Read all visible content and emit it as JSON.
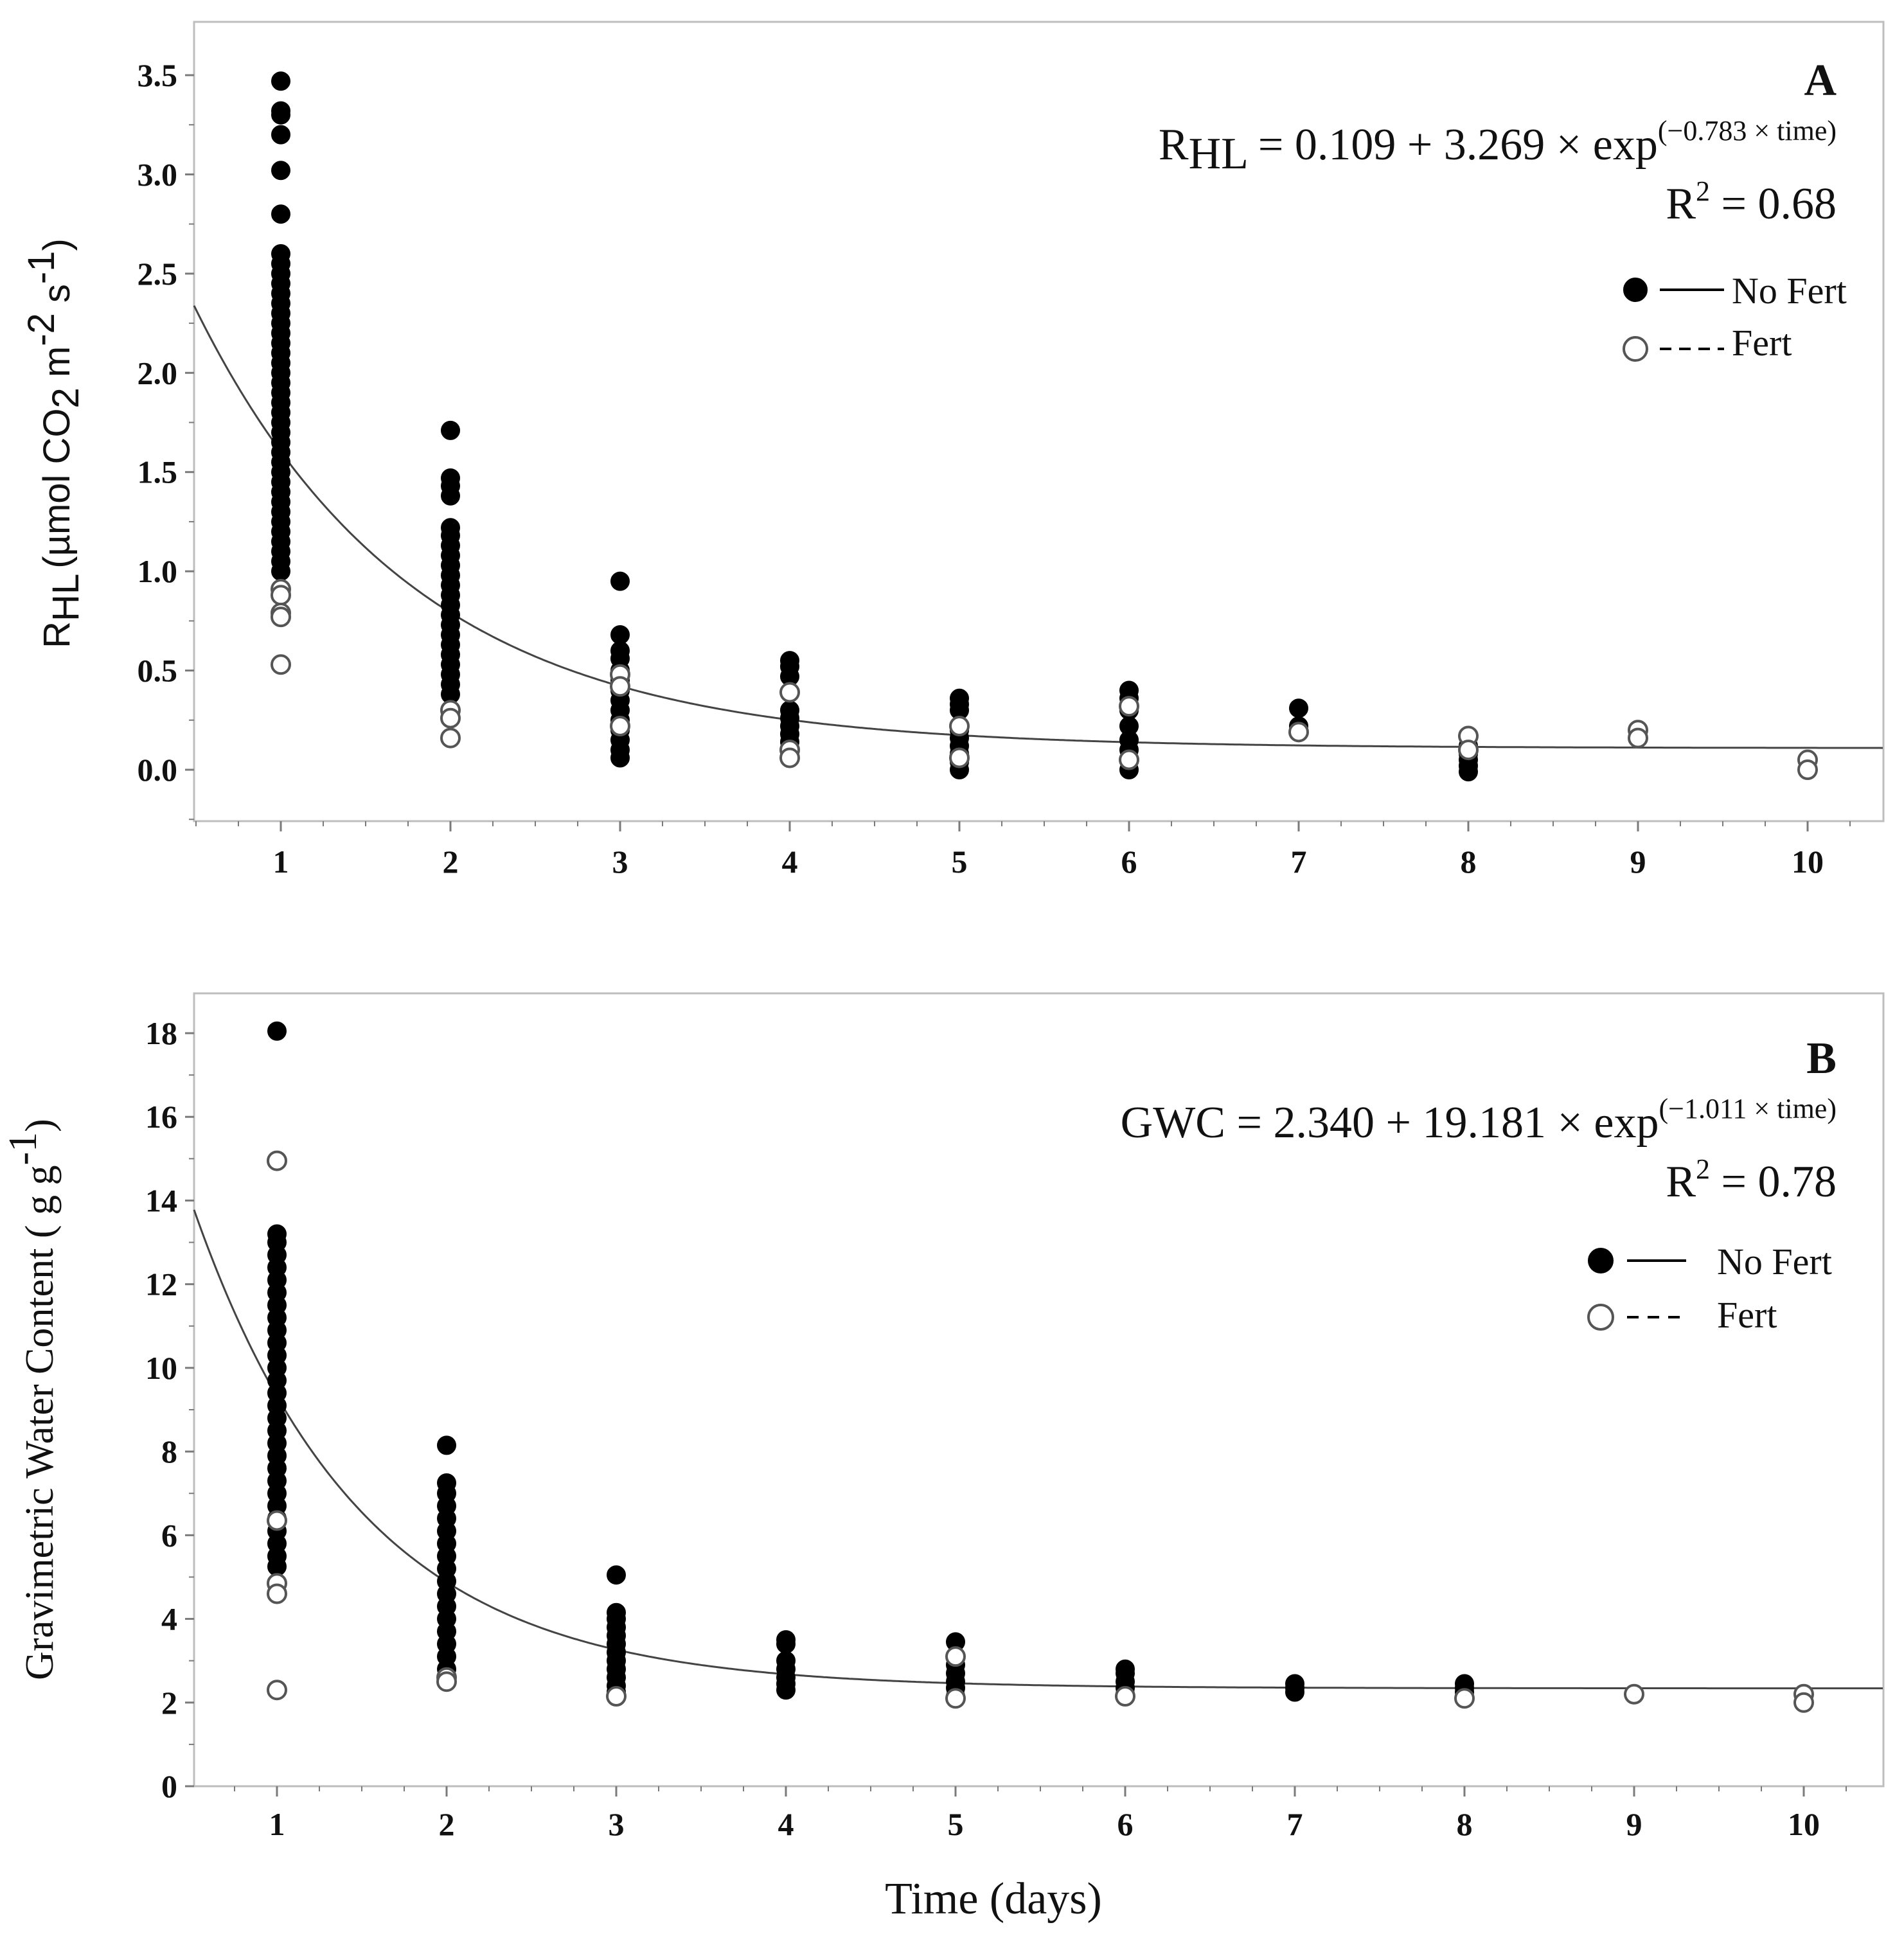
{
  "chart_data": [
    {
      "type": "scatter",
      "panel_letter": "A",
      "ylabel_main": "R",
      "ylabel_sub": "HL",
      "ylabel_rest": "(µmol CO",
      "ylabel_co2_sub": "2",
      "ylabel_m": " m",
      "ylabel_m_sup": "-2",
      "ylabel_s": " s",
      "ylabel_s_sup": "-1",
      "ylabel_close": ")",
      "ylim": [
        -0.25,
        3.6
      ],
      "yticks": [
        0.0,
        0.5,
        1.0,
        1.5,
        2.0,
        2.5,
        3.0,
        3.5
      ],
      "ytick_labels": [
        "0.0",
        "0.5",
        "1.0",
        "1.5",
        "2.0",
        "2.5",
        "3.0",
        "3.5"
      ],
      "xlim": [
        0.5,
        10.5
      ],
      "equation_lhs": "R",
      "equation_lhs_sub": "HL",
      "equation_body": " = 0.109 + 3.269 × exp",
      "equation_exp": "(−0.783 × time)",
      "r2_label": "R",
      "r2_sup": "2",
      "r2_value": " = 0.68",
      "fit": {
        "a": 0.109,
        "b": 3.269,
        "k": -0.783
      },
      "legend": [
        {
          "marker": "filled",
          "line": "solid",
          "label": "No Fert"
        },
        {
          "marker": "open",
          "line": "dashed",
          "label": "Fert"
        }
      ],
      "series": [
        {
          "name": "No Fert",
          "points": [
            [
              1,
              3.47
            ],
            [
              1,
              3.32
            ],
            [
              1,
              3.3
            ],
            [
              1,
              3.2
            ],
            [
              1,
              3.02
            ],
            [
              1,
              2.8
            ],
            [
              1,
              2.6
            ],
            [
              1,
              2.55
            ],
            [
              1,
              2.5
            ],
            [
              1,
              2.45
            ],
            [
              1,
              2.4
            ],
            [
              1,
              2.35
            ],
            [
              1,
              2.3
            ],
            [
              1,
              2.25
            ],
            [
              1,
              2.2
            ],
            [
              1,
              2.15
            ],
            [
              1,
              2.1
            ],
            [
              1,
              2.05
            ],
            [
              1,
              2.0
            ],
            [
              1,
              1.95
            ],
            [
              1,
              1.9
            ],
            [
              1,
              1.85
            ],
            [
              1,
              1.8
            ],
            [
              1,
              1.75
            ],
            [
              1,
              1.7
            ],
            [
              1,
              1.65
            ],
            [
              1,
              1.6
            ],
            [
              1,
              1.55
            ],
            [
              1,
              1.5
            ],
            [
              1,
              1.45
            ],
            [
              1,
              1.4
            ],
            [
              1,
              1.35
            ],
            [
              1,
              1.3
            ],
            [
              1,
              1.25
            ],
            [
              1,
              1.2
            ],
            [
              1,
              1.15
            ],
            [
              1,
              1.1
            ],
            [
              1,
              1.05
            ],
            [
              1,
              1.0
            ],
            [
              2,
              1.71
            ],
            [
              2,
              1.47
            ],
            [
              2,
              1.43
            ],
            [
              2,
              1.38
            ],
            [
              2,
              1.22
            ],
            [
              2,
              1.18
            ],
            [
              2,
              1.13
            ],
            [
              2,
              1.08
            ],
            [
              2,
              1.03
            ],
            [
              2,
              0.98
            ],
            [
              2,
              0.93
            ],
            [
              2,
              0.88
            ],
            [
              2,
              0.83
            ],
            [
              2,
              0.78
            ],
            [
              2,
              0.73
            ],
            [
              2,
              0.68
            ],
            [
              2,
              0.63
            ],
            [
              2,
              0.58
            ],
            [
              2,
              0.53
            ],
            [
              2,
              0.48
            ],
            [
              2,
              0.43
            ],
            [
              2,
              0.38
            ],
            [
              3,
              0.95
            ],
            [
              3,
              0.68
            ],
            [
              3,
              0.6
            ],
            [
              3,
              0.56
            ],
            [
              3,
              0.5
            ],
            [
              3,
              0.45
            ],
            [
              3,
              0.4
            ],
            [
              3,
              0.35
            ],
            [
              3,
              0.3
            ],
            [
              3,
              0.25
            ],
            [
              3,
              0.2
            ],
            [
              3,
              0.15
            ],
            [
              3,
              0.1
            ],
            [
              3,
              0.06
            ],
            [
              4,
              0.55
            ],
            [
              4,
              0.52
            ],
            [
              4,
              0.47
            ],
            [
              4,
              0.3
            ],
            [
              4,
              0.26
            ],
            [
              4,
              0.22
            ],
            [
              4,
              0.18
            ],
            [
              4,
              0.14
            ],
            [
              4,
              0.1
            ],
            [
              5,
              0.36
            ],
            [
              5,
              0.33
            ],
            [
              5,
              0.3
            ],
            [
              5,
              0.2
            ],
            [
              5,
              0.16
            ],
            [
              5,
              0.12
            ],
            [
              5,
              0.08
            ],
            [
              5,
              0.04
            ],
            [
              5,
              0.0
            ],
            [
              6,
              0.4
            ],
            [
              6,
              0.36
            ],
            [
              6,
              0.3
            ],
            [
              6,
              0.22
            ],
            [
              6,
              0.15
            ],
            [
              6,
              0.1
            ],
            [
              6,
              0.0
            ],
            [
              7,
              0.31
            ],
            [
              7,
              0.22
            ],
            [
              7,
              0.2
            ],
            [
              8,
              0.12
            ],
            [
              8,
              0.08
            ],
            [
              8,
              0.05
            ],
            [
              8,
              0.02
            ],
            [
              8,
              -0.01
            ]
          ]
        },
        {
          "name": "Fert",
          "points": [
            [
              1,
              0.91
            ],
            [
              1,
              0.88
            ],
            [
              1,
              0.79
            ],
            [
              1,
              0.77
            ],
            [
              1,
              0.53
            ],
            [
              2,
              0.3
            ],
            [
              2,
              0.26
            ],
            [
              2,
              0.16
            ],
            [
              3,
              0.48
            ],
            [
              3,
              0.42
            ],
            [
              3,
              0.22
            ],
            [
              4,
              0.39
            ],
            [
              4,
              0.1
            ],
            [
              4,
              0.06
            ],
            [
              5,
              0.22
            ],
            [
              5,
              0.06
            ],
            [
              6,
              0.32
            ],
            [
              6,
              0.05
            ],
            [
              7,
              0.19
            ],
            [
              8,
              0.17
            ],
            [
              8,
              0.1
            ],
            [
              9,
              0.2
            ],
            [
              9,
              0.16
            ],
            [
              10,
              0.05
            ],
            [
              10,
              0.0
            ]
          ]
        }
      ]
    },
    {
      "type": "scatter",
      "panel_letter": "B",
      "ylabel": "Gravimetric  Water Content ( g g",
      "ylabel_sup": "-1",
      "ylabel_close": ")",
      "ylim": [
        0,
        19
      ],
      "yticks": [
        0,
        2,
        4,
        6,
        8,
        10,
        12,
        14,
        16,
        18
      ],
      "ytick_labels": [
        "0",
        "2",
        "4",
        "6",
        "8",
        "10",
        "12",
        "14",
        "16",
        "18"
      ],
      "xlim": [
        0.5,
        10.5
      ],
      "xticks": [
        1,
        2,
        3,
        4,
        5,
        6,
        7,
        8,
        9,
        10
      ],
      "xtick_labels": [
        "1",
        "2",
        "3",
        "4",
        "5",
        "6",
        "7",
        "8",
        "9",
        "10"
      ],
      "xlabel": "Time  (days)",
      "equation_body": "GWC = 2.340 + 19.181 × exp",
      "equation_exp": "(−1.011 × time)",
      "r2_label": "R",
      "r2_sup": "2",
      "r2_value": " = 0.78",
      "fit": {
        "a": 2.34,
        "b": 19.181,
        "k": -1.011
      },
      "legend": [
        {
          "marker": "filled",
          "line": "solid",
          "label": "No Fert"
        },
        {
          "marker": "open",
          "line": "dashed",
          "label": "Fert"
        }
      ],
      "series": [
        {
          "name": "No Fert",
          "points": [
            [
              1,
              18.05
            ],
            [
              1,
              13.2
            ],
            [
              1,
              13.0
            ],
            [
              1,
              12.7
            ],
            [
              1,
              12.4
            ],
            [
              1,
              12.1
            ],
            [
              1,
              11.8
            ],
            [
              1,
              11.5
            ],
            [
              1,
              11.2
            ],
            [
              1,
              10.9
            ],
            [
              1,
              10.6
            ],
            [
              1,
              10.3
            ],
            [
              1,
              10.0
            ],
            [
              1,
              9.7
            ],
            [
              1,
              9.4
            ],
            [
              1,
              9.1
            ],
            [
              1,
              8.8
            ],
            [
              1,
              8.5
            ],
            [
              1,
              8.2
            ],
            [
              1,
              7.9
            ],
            [
              1,
              7.6
            ],
            [
              1,
              7.3
            ],
            [
              1,
              7.0
            ],
            [
              1,
              6.7
            ],
            [
              1,
              6.4
            ],
            [
              1,
              6.1
            ],
            [
              1,
              5.8
            ],
            [
              1,
              5.5
            ],
            [
              1,
              5.25
            ],
            [
              2,
              8.15
            ],
            [
              2,
              7.25
            ],
            [
              2,
              7.0
            ],
            [
              2,
              6.7
            ],
            [
              2,
              6.4
            ],
            [
              2,
              6.1
            ],
            [
              2,
              5.8
            ],
            [
              2,
              5.5
            ],
            [
              2,
              5.2
            ],
            [
              2,
              4.9
            ],
            [
              2,
              4.6
            ],
            [
              2,
              4.3
            ],
            [
              2,
              4.0
            ],
            [
              2,
              3.7
            ],
            [
              2,
              3.4
            ],
            [
              2,
              3.1
            ],
            [
              2,
              2.8
            ],
            [
              2,
              2.6
            ],
            [
              3,
              5.05
            ],
            [
              3,
              4.15
            ],
            [
              3,
              4.0
            ],
            [
              3,
              3.8
            ],
            [
              3,
              3.6
            ],
            [
              3,
              3.4
            ],
            [
              3,
              3.2
            ],
            [
              3,
              3.0
            ],
            [
              3,
              2.8
            ],
            [
              3,
              2.6
            ],
            [
              3,
              2.4
            ],
            [
              3,
              2.25
            ],
            [
              4,
              3.5
            ],
            [
              4,
              3.4
            ],
            [
              4,
              3.0
            ],
            [
              4,
              2.8
            ],
            [
              4,
              2.6
            ],
            [
              4,
              2.45
            ],
            [
              4,
              2.3
            ],
            [
              5,
              3.45
            ],
            [
              5,
              2.9
            ],
            [
              5,
              2.7
            ],
            [
              5,
              2.5
            ],
            [
              5,
              2.35
            ],
            [
              5,
              2.15
            ],
            [
              6,
              2.8
            ],
            [
              6,
              2.7
            ],
            [
              6,
              2.5
            ],
            [
              6,
              2.35
            ],
            [
              6,
              2.2
            ],
            [
              7,
              2.45
            ],
            [
              7,
              2.35
            ],
            [
              7,
              2.25
            ],
            [
              8,
              2.45
            ],
            [
              8,
              2.35
            ],
            [
              8,
              2.25
            ],
            [
              8,
              2.15
            ]
          ]
        },
        {
          "name": "Fert",
          "points": [
            [
              1,
              14.95
            ],
            [
              1,
              6.35
            ],
            [
              1,
              4.85
            ],
            [
              1,
              4.6
            ],
            [
              1,
              2.3
            ],
            [
              2,
              2.6
            ],
            [
              2,
              2.5
            ],
            [
              3,
              2.15
            ],
            [
              5,
              3.1
            ],
            [
              5,
              2.1
            ],
            [
              6,
              2.15
            ],
            [
              8,
              2.1
            ],
            [
              9,
              2.2
            ],
            [
              10,
              2.2
            ],
            [
              10,
              2.0
            ]
          ]
        }
      ]
    }
  ]
}
